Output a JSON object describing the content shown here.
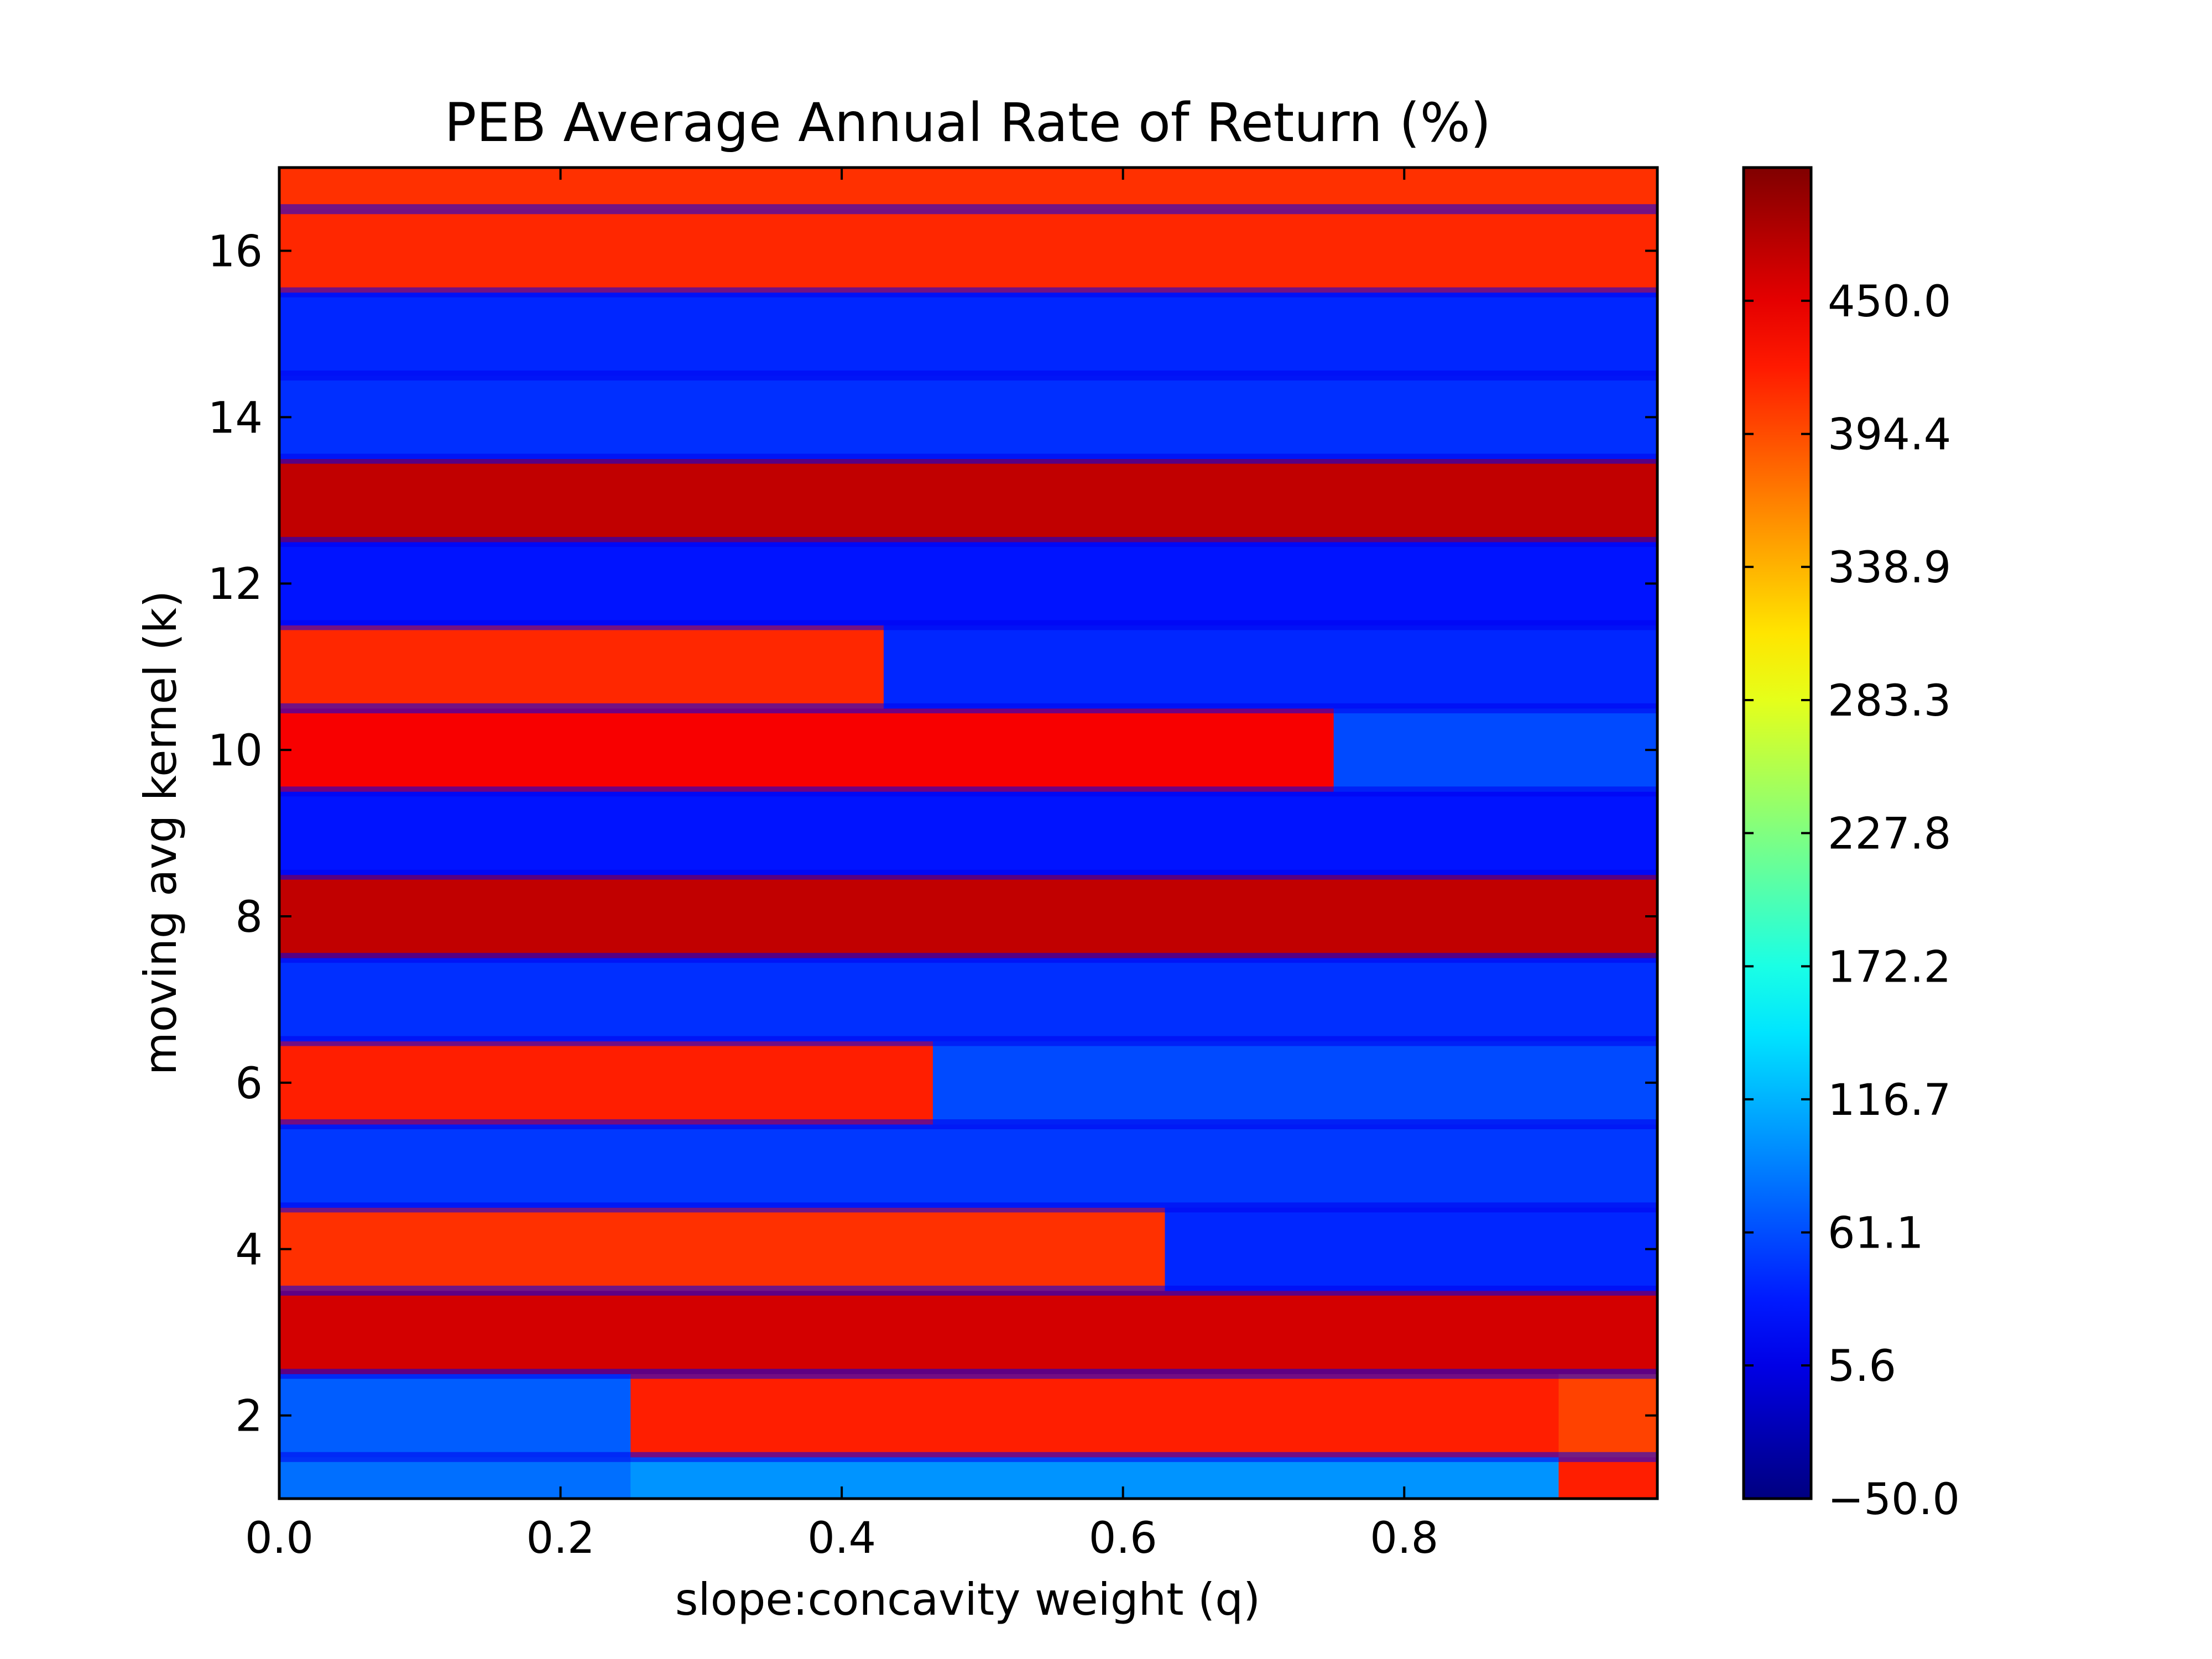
{
  "chart_data": {
    "type": "heatmap",
    "title": "PEB Average Annual Rate of Return (%)",
    "xlabel": "slope:concavity weight (q)",
    "ylabel": "moving avg kernel (k)",
    "xlim": [
      0,
      0.98
    ],
    "ylim": [
      1,
      17
    ],
    "x_ticks": [
      0.0,
      0.2,
      0.4,
      0.6,
      0.8
    ],
    "x_tick_labels": [
      "0.0",
      "0.2",
      "0.4",
      "0.6",
      "0.8"
    ],
    "y_ticks": [
      2,
      4,
      6,
      8,
      10,
      12,
      14,
      16
    ],
    "y_tick_labels": [
      "2",
      "4",
      "6",
      "8",
      "10",
      "12",
      "14",
      "16"
    ],
    "colorbar": {
      "colormap": "jet",
      "range": [
        -50.0,
        505.6
      ],
      "ticks": [
        -50.0,
        5.6,
        61.1,
        116.7,
        172.2,
        227.8,
        283.3,
        338.9,
        394.4,
        450.0
      ],
      "tick_labels": [
        "−50.0",
        "5.6",
        "61.1",
        "116.7",
        "172.2",
        "227.8",
        "283.3",
        "338.9",
        "394.4",
        "450.0"
      ]
    },
    "k_rows": [
      {
        "k": 1,
        "segments": [
          {
            "q_from": 0.0,
            "q_to": 0.25,
            "value": 80
          },
          {
            "q_from": 0.25,
            "q_to": 0.91,
            "value": 100
          },
          {
            "q_from": 0.91,
            "q_to": 0.98,
            "value": 420
          }
        ]
      },
      {
        "k": 2,
        "segments": [
          {
            "q_from": 0.0,
            "q_to": 0.25,
            "value": 70
          },
          {
            "q_from": 0.25,
            "q_to": 0.91,
            "value": 420
          },
          {
            "q_from": 0.91,
            "q_to": 0.98,
            "value": 400
          }
        ]
      },
      {
        "k": 3,
        "segments": [
          {
            "q_from": 0.0,
            "q_to": 0.98,
            "value": 460
          }
        ]
      },
      {
        "k": 4,
        "segments": [
          {
            "q_from": 0.0,
            "q_to": 0.63,
            "value": 410
          },
          {
            "q_from": 0.63,
            "q_to": 0.98,
            "value": 40
          }
        ]
      },
      {
        "k": 5,
        "segments": [
          {
            "q_from": 0.0,
            "q_to": 0.98,
            "value": 50
          }
        ]
      },
      {
        "k": 6,
        "segments": [
          {
            "q_from": 0.0,
            "q_to": 0.465,
            "value": 420
          },
          {
            "q_from": 0.465,
            "q_to": 0.98,
            "value": 60
          }
        ]
      },
      {
        "k": 7,
        "segments": [
          {
            "q_from": 0.0,
            "q_to": 0.98,
            "value": 45
          }
        ]
      },
      {
        "k": 8,
        "segments": [
          {
            "q_from": 0.0,
            "q_to": 0.98,
            "value": 470
          }
        ]
      },
      {
        "k": 9,
        "segments": [
          {
            "q_from": 0.0,
            "q_to": 0.98,
            "value": 30
          }
        ]
      },
      {
        "k": 10,
        "segments": [
          {
            "q_from": 0.0,
            "q_to": 0.75,
            "value": 440
          },
          {
            "q_from": 0.75,
            "q_to": 0.98,
            "value": 60
          }
        ]
      },
      {
        "k": 11,
        "segments": [
          {
            "q_from": 0.0,
            "q_to": 0.43,
            "value": 415
          },
          {
            "q_from": 0.43,
            "q_to": 0.98,
            "value": 40
          }
        ]
      },
      {
        "k": 12,
        "segments": [
          {
            "q_from": 0.0,
            "q_to": 0.98,
            "value": 30
          }
        ]
      },
      {
        "k": 13,
        "segments": [
          {
            "q_from": 0.0,
            "q_to": 0.98,
            "value": 470
          }
        ]
      },
      {
        "k": 14,
        "segments": [
          {
            "q_from": 0.0,
            "q_to": 0.98,
            "value": 45
          }
        ]
      },
      {
        "k": 15,
        "segments": [
          {
            "q_from": 0.0,
            "q_to": 0.98,
            "value": 40
          }
        ]
      },
      {
        "k": 16,
        "segments": [
          {
            "q_from": 0.0,
            "q_to": 0.98,
            "value": 415
          }
        ]
      },
      {
        "k": 17,
        "segments": [
          {
            "q_from": 0.0,
            "q_to": 0.98,
            "value": 410
          }
        ]
      }
    ]
  }
}
